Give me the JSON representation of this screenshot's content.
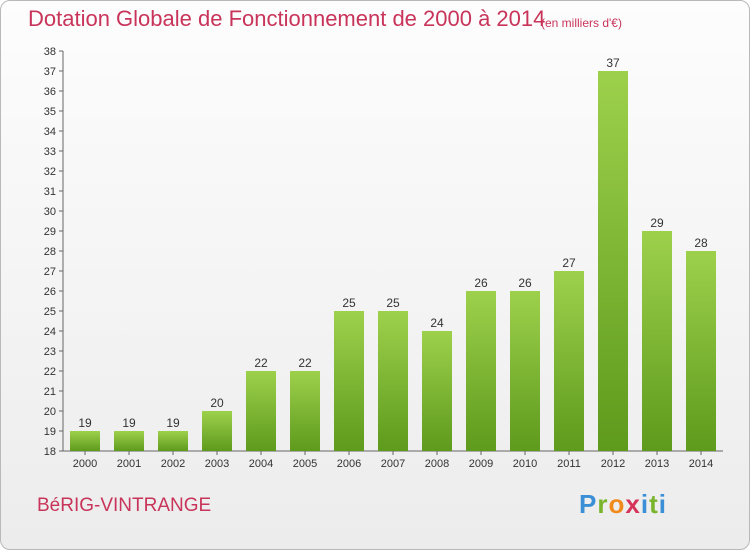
{
  "chart_data": {
    "type": "bar",
    "title": "Dotation Globale de Fonctionnement de 2000 à 2014",
    "unit": "(en milliers d'€)",
    "categories": [
      "2000",
      "2001",
      "2002",
      "2003",
      "2004",
      "2005",
      "2006",
      "2007",
      "2008",
      "2009",
      "2010",
      "2011",
      "2012",
      "2013",
      "2014"
    ],
    "values": [
      19,
      19,
      19,
      20,
      22,
      22,
      25,
      25,
      24,
      26,
      26,
      27,
      37,
      29,
      28
    ],
    "ylim": [
      18,
      38
    ],
    "yticks": [
      18,
      19,
      20,
      21,
      22,
      23,
      24,
      25,
      26,
      27,
      28,
      29,
      30,
      31,
      32,
      33,
      34,
      35,
      36,
      37,
      38
    ],
    "grid": false,
    "bar_color": "#7cb82f"
  },
  "footer": {
    "city": "BéRIG-VINTRANGE",
    "logo": "Proxiti"
  }
}
